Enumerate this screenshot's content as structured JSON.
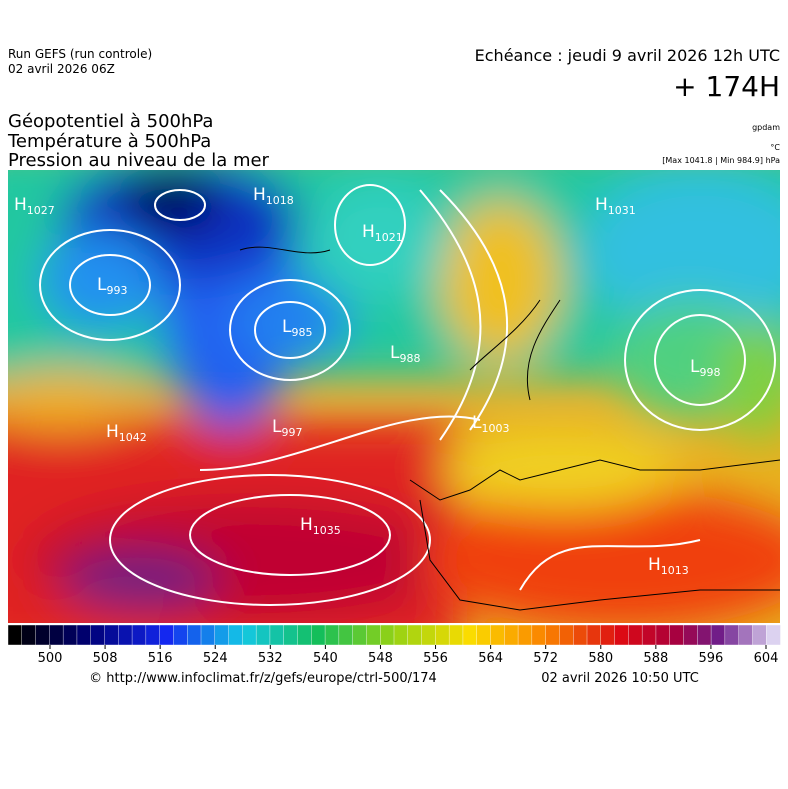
{
  "header": {
    "run": "Run GEFS (run controle)",
    "date": "02 avril 2026 06Z",
    "echeance": "Echéance : jeudi 9 avril 2026 12h UTC",
    "lead": "+ 174H",
    "params": [
      "Géopotentiel à 500hPa",
      "Température à 500hPa",
      "Pression au niveau de la mer"
    ],
    "units": [
      "gpdam",
      "°C",
      "[Max 1041.8 | Min 984.9] hPa"
    ]
  },
  "map": {
    "systems": [
      {
        "type": "H",
        "value": "1027"
      },
      {
        "type": "H",
        "value": "1018"
      },
      {
        "type": "H",
        "value": "1021"
      },
      {
        "type": "L",
        "value": "993"
      },
      {
        "type": "L",
        "value": "985"
      },
      {
        "type": "L",
        "value": "988"
      },
      {
        "type": "H",
        "value": "1042"
      },
      {
        "type": "L",
        "value": "997"
      },
      {
        "type": "H",
        "value": "1035"
      },
      {
        "type": "L",
        "value": "998"
      },
      {
        "type": "H",
        "value": "1013"
      },
      {
        "type": "L",
        "value": "1003"
      },
      {
        "type": "H",
        "value": "1031"
      }
    ]
  },
  "colorbar": {
    "ticks": [
      500,
      508,
      516,
      524,
      532,
      540,
      548,
      556,
      564,
      572,
      580,
      588,
      596,
      604
    ]
  },
  "footer": {
    "url": "© http://www.infoclimat.fr/z/gefs/europe/ctrl-500/174",
    "issued": "02 avril 2026 10:50 UTC"
  }
}
